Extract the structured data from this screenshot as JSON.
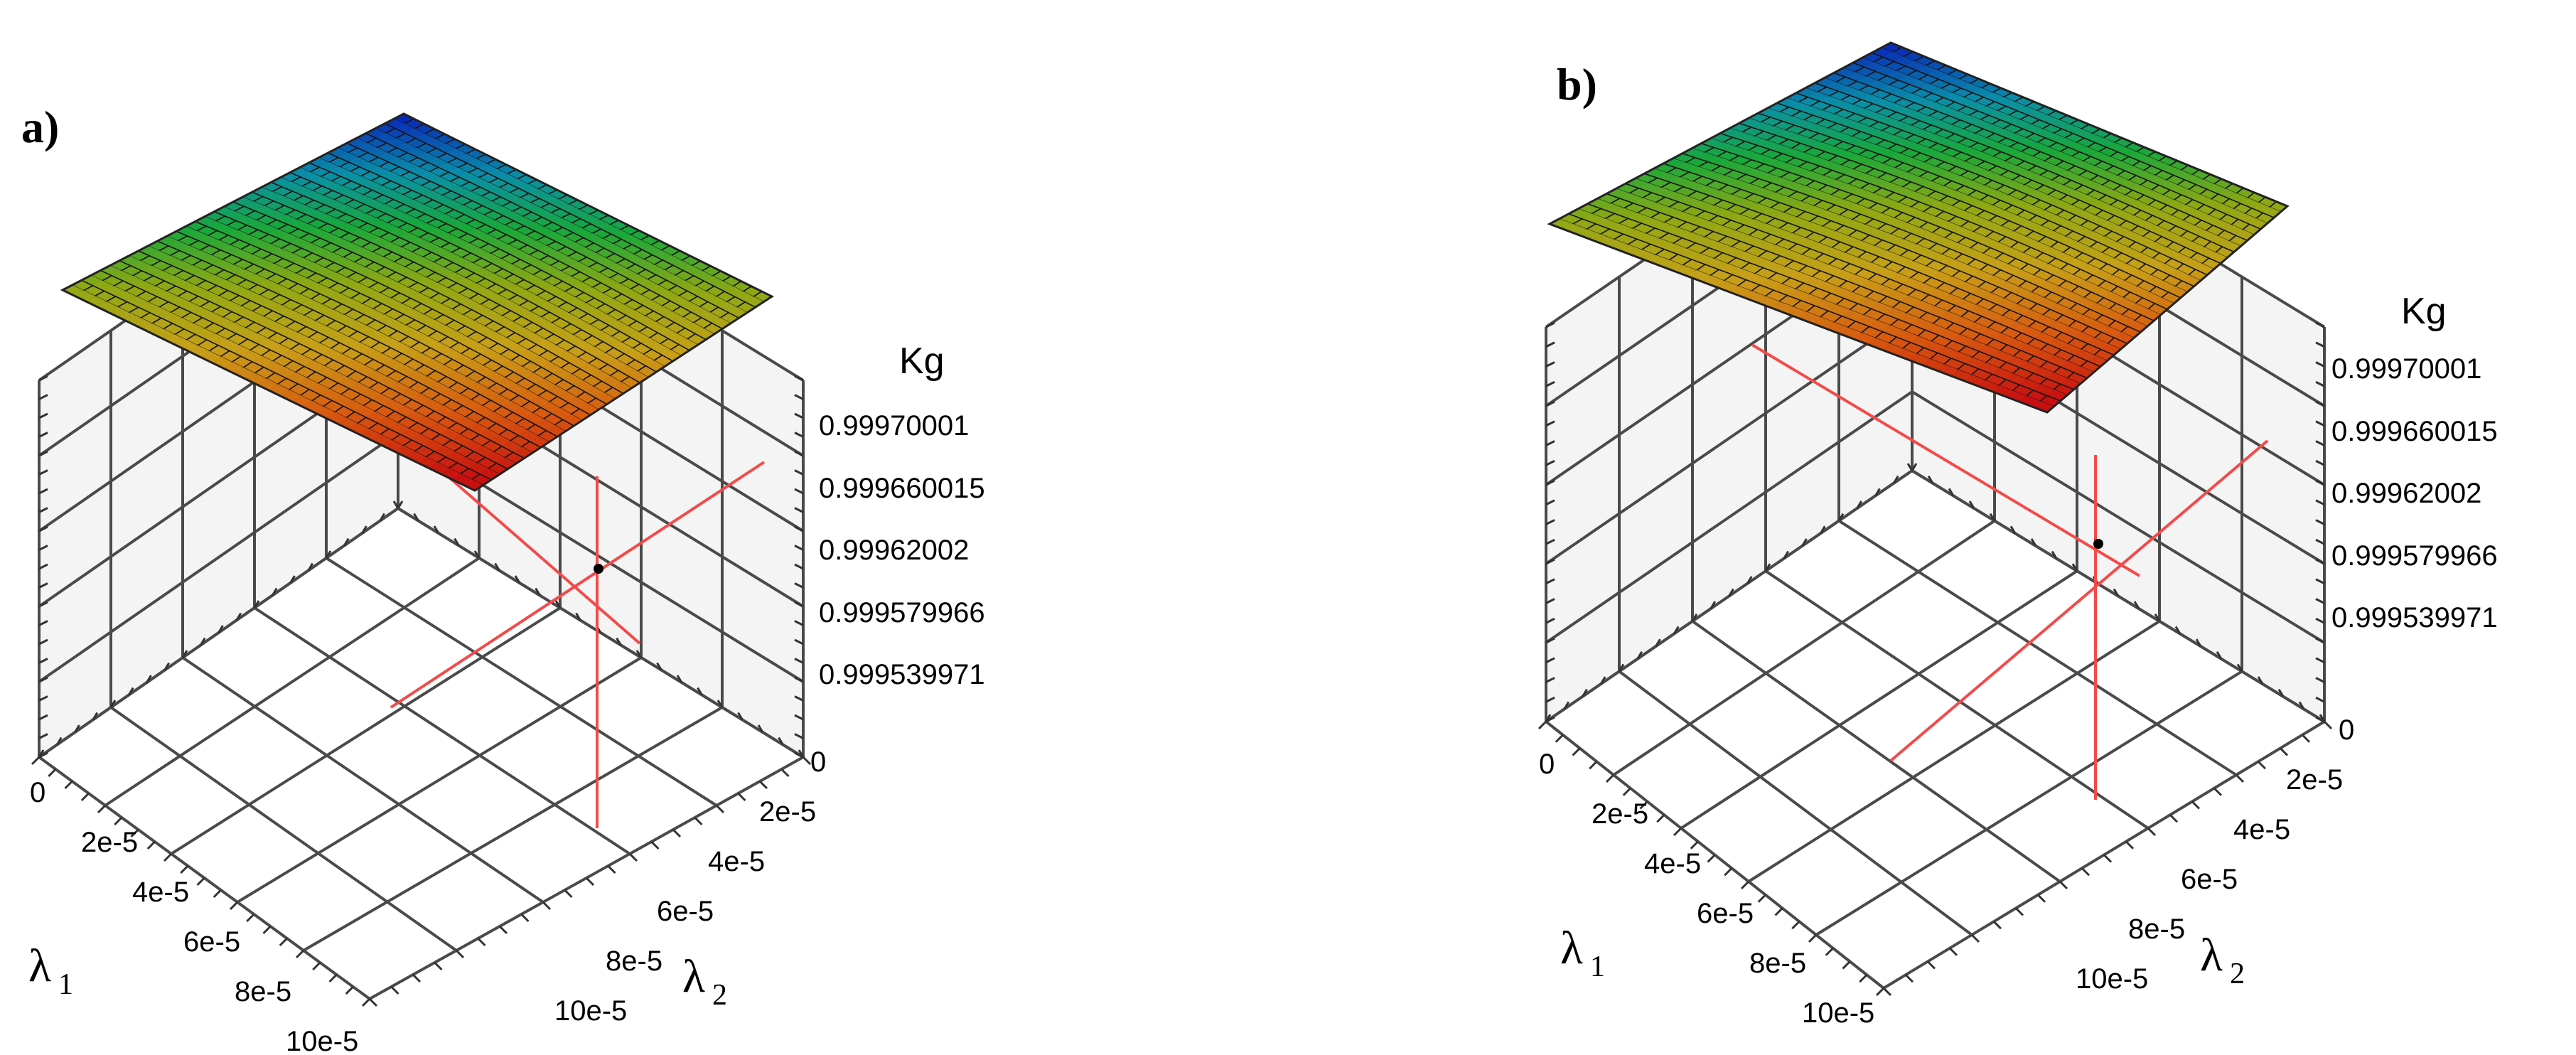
{
  "chart_data": [
    {
      "panel": "a)",
      "type": "surface",
      "x_axis": {
        "label": "λ",
        "label_sub": "1",
        "ticks": [
          "0",
          "2e-5",
          "4e-5",
          "6e-5",
          "8e-5",
          "10e-5"
        ],
        "range": [
          0,
          0.0001
        ]
      },
      "y_axis": {
        "label": "λ",
        "label_sub": "2",
        "ticks": [
          "0",
          "2e-5",
          "4e-5",
          "6e-5",
          "8e-5",
          "10e-5"
        ],
        "range": [
          0,
          0.0001
        ]
      },
      "z_axis": {
        "label": "Kg",
        "ticks": [
          "0.99970001",
          "0.999660015",
          "0.99962002",
          "0.999579966",
          "0.999539971"
        ]
      },
      "colormap": [
        "#0a2bb8",
        "#0a8fa8",
        "#19a83a",
        "#8fa814",
        "#c8a018",
        "#d85a10",
        "#c81010"
      ],
      "optimum_marker": true,
      "grid": true
    },
    {
      "panel": "b)",
      "type": "surface",
      "x_axis": {
        "label": "λ",
        "label_sub": "1",
        "ticks": [
          "0",
          "2e-5",
          "4e-5",
          "6e-5",
          "8e-5",
          "10e-5"
        ],
        "range": [
          0,
          0.0001
        ]
      },
      "y_axis": {
        "label": "λ",
        "label_sub": "2",
        "ticks": [
          "0",
          "2e-5",
          "4e-5",
          "6e-5",
          "8e-5",
          "10e-5"
        ],
        "range": [
          0,
          0.0001
        ]
      },
      "z_axis": {
        "label": "Kg",
        "ticks": [
          "0.99970001",
          "0.999660015",
          "0.99962002",
          "0.999579966",
          "0.999539971"
        ]
      },
      "colormap": [
        "#0a2bb8",
        "#0a8fa8",
        "#19a83a",
        "#8fa814",
        "#c8a018",
        "#d85a10",
        "#c81010"
      ],
      "optimum_marker": true,
      "grid": true
    }
  ]
}
